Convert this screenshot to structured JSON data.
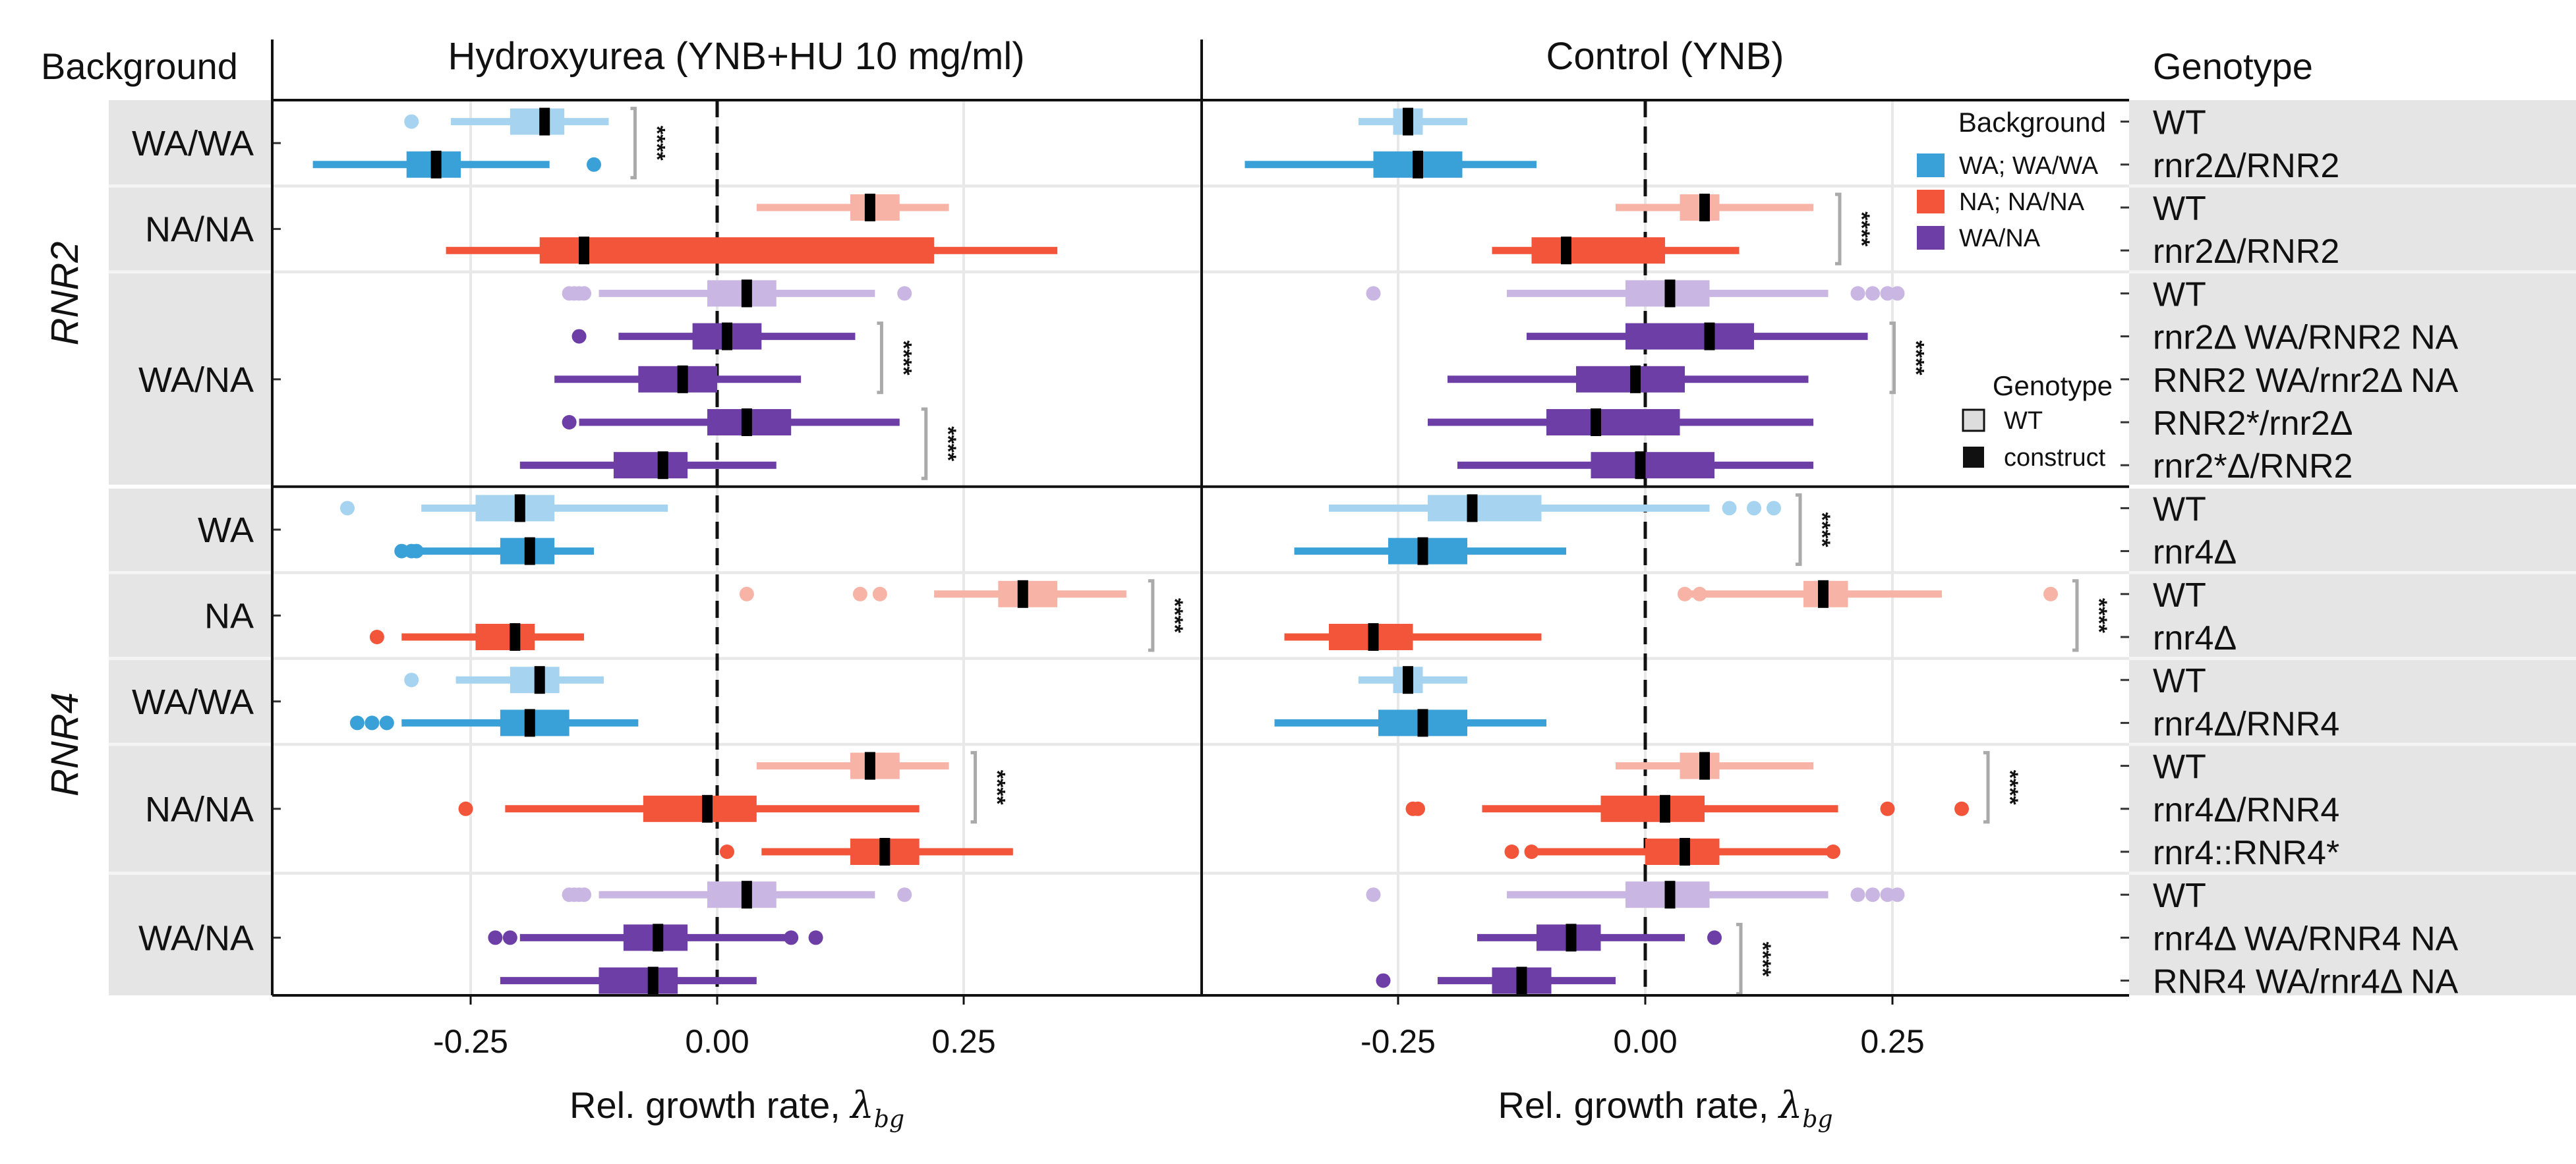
{
  "chart_data": {
    "type": "box",
    "headers": {
      "background": "Background",
      "genotype": "Genotype",
      "panels": [
        "Hydroxyurea (YNB+HU 10 mg/ml)",
        "Control (YNB)"
      ]
    },
    "x_axis": {
      "label": "Rel. growth rate, ",
      "label_symbol": "λ",
      "label_sub": "bg",
      "ticks": [
        -0.25,
        0.0,
        0.25
      ],
      "tick_labels": [
        "-0.25",
        "0.00",
        "0.25"
      ],
      "xlim": [
        -0.45,
        0.45
      ],
      "reference_line": 0
    },
    "gene_groups": [
      {
        "label": "RNR2",
        "row_start": 1,
        "row_end": 9
      },
      {
        "label": "RNR4",
        "row_start": 10,
        "row_end": 21
      }
    ],
    "background_groups": [
      {
        "label": "WA/WA",
        "row_start": 1,
        "row_end": 2
      },
      {
        "label": "NA/NA",
        "row_start": 3,
        "row_end": 4
      },
      {
        "label": "WA/NA",
        "row_start": 5,
        "row_end": 9
      },
      {
        "label": "WA",
        "row_start": 10,
        "row_end": 11
      },
      {
        "label": "NA",
        "row_start": 12,
        "row_end": 13
      },
      {
        "label": "WA/WA",
        "row_start": 14,
        "row_end": 15
      },
      {
        "label": "NA/NA",
        "row_start": 16,
        "row_end": 18
      },
      {
        "label": "WA/NA",
        "row_start": 19,
        "row_end": 21
      }
    ],
    "legend": {
      "background_title": "Background",
      "background_items": [
        {
          "label": "WA; WA/WA",
          "color": "#3aa0d8"
        },
        {
          "label": "NA; NA/NA",
          "color": "#f2553a"
        },
        {
          "label": "WA/NA",
          "color": "#6d3ea5"
        }
      ],
      "genotype_title": "Genotype",
      "genotype_items": [
        {
          "label": "WT",
          "style": "light"
        },
        {
          "label": "construct",
          "style": "dark"
        }
      ]
    },
    "colors": {
      "WA": {
        "dark": "#3aa0d8",
        "light": "#a6d4f0"
      },
      "NA": {
        "dark": "#f2553a",
        "light": "#f7b3a5"
      },
      "WN": {
        "dark": "#6d3ea5",
        "light": "#c9b6e2"
      },
      "panel_strip": "#e5e5e5",
      "row_line": "#e8e8e8",
      "significance_bracket": "#aaaaaa"
    },
    "significance_label": "****",
    "rows": [
      {
        "genotype": "WT",
        "color": "WA",
        "type": "wt",
        "hu": {
          "wl": -0.27,
          "q1": -0.21,
          "med": -0.175,
          "q3": -0.155,
          "wh": -0.11,
          "out": [
            -0.31
          ]
        },
        "ctrl": {
          "wl": -0.29,
          "q1": -0.255,
          "med": -0.24,
          "q3": -0.225,
          "wh": -0.18,
          "out": []
        }
      },
      {
        "genotype": "rnr2Δ/RNR2",
        "color": "WA",
        "type": "c",
        "hu": {
          "wl": -0.41,
          "q1": -0.315,
          "med": -0.285,
          "q3": -0.26,
          "wh": -0.17,
          "out": [
            -0.125
          ]
        },
        "ctrl": {
          "wl": -0.405,
          "q1": -0.275,
          "med": -0.23,
          "q3": -0.185,
          "wh": -0.11,
          "out": []
        }
      },
      {
        "genotype": "WT",
        "color": "NA",
        "type": "wt",
        "hu": {
          "wl": 0.04,
          "q1": 0.135,
          "med": 0.155,
          "q3": 0.185,
          "wh": 0.235,
          "out": []
        },
        "ctrl": {
          "wl": -0.03,
          "q1": 0.035,
          "med": 0.06,
          "q3": 0.075,
          "wh": 0.17,
          "out": []
        }
      },
      {
        "genotype": "rnr2Δ/RNR2",
        "color": "NA",
        "type": "c",
        "hu": {
          "wl": -0.275,
          "q1": -0.18,
          "med": -0.135,
          "q3": 0.22,
          "wh": 0.345,
          "out": []
        },
        "ctrl": {
          "wl": -0.155,
          "q1": -0.115,
          "med": -0.08,
          "q3": 0.02,
          "wh": 0.095,
          "out": []
        }
      },
      {
        "genotype": "WT",
        "color": "WN",
        "type": "wt",
        "hu": {
          "wl": -0.12,
          "q1": -0.01,
          "med": 0.03,
          "q3": 0.06,
          "wh": 0.16,
          "out": [
            -0.15,
            -0.145,
            -0.14,
            -0.135,
            0.19
          ]
        },
        "ctrl": {
          "wl": -0.14,
          "q1": -0.02,
          "med": 0.025,
          "q3": 0.065,
          "wh": 0.185,
          "out": [
            -0.275,
            0.215,
            0.23,
            0.245,
            0.255
          ]
        }
      },
      {
        "genotype": "rnr2Δ WA/RNR2 NA",
        "color": "WN",
        "type": "c",
        "hu": {
          "wl": -0.1,
          "q1": -0.025,
          "med": 0.01,
          "q3": 0.045,
          "wh": 0.14,
          "out": [
            -0.14
          ]
        },
        "ctrl": {
          "wl": -0.12,
          "q1": -0.02,
          "med": 0.065,
          "q3": 0.11,
          "wh": 0.225,
          "out": []
        }
      },
      {
        "genotype": "RNR2 WA/rnr2Δ NA",
        "color": "WN",
        "type": "c",
        "hu": {
          "wl": -0.165,
          "q1": -0.08,
          "med": -0.035,
          "q3": 0.0,
          "wh": 0.085,
          "out": []
        },
        "ctrl": {
          "wl": -0.2,
          "q1": -0.07,
          "med": -0.01,
          "q3": 0.04,
          "wh": 0.165,
          "out": []
        }
      },
      {
        "genotype": "RNR2*/rnr2Δ",
        "color": "WN",
        "type": "c",
        "hu": {
          "wl": -0.14,
          "q1": -0.01,
          "med": 0.03,
          "q3": 0.075,
          "wh": 0.185,
          "out": [
            -0.15
          ]
        },
        "ctrl": {
          "wl": -0.22,
          "q1": -0.1,
          "med": -0.05,
          "q3": 0.035,
          "wh": 0.17,
          "out": []
        }
      },
      {
        "genotype": "rnr2*Δ/RNR2",
        "color": "WN",
        "type": "c",
        "hu": {
          "wl": -0.2,
          "q1": -0.105,
          "med": -0.055,
          "q3": -0.03,
          "wh": 0.06,
          "out": []
        },
        "ctrl": {
          "wl": -0.19,
          "q1": -0.055,
          "med": -0.005,
          "q3": 0.07,
          "wh": 0.17,
          "out": []
        }
      },
      {
        "genotype": "WT",
        "color": "WA",
        "type": "wt",
        "hu": {
          "wl": -0.3,
          "q1": -0.245,
          "med": -0.2,
          "q3": -0.165,
          "wh": -0.05,
          "out": [
            -0.375
          ]
        },
        "ctrl": {
          "wl": -0.32,
          "q1": -0.22,
          "med": -0.175,
          "q3": -0.105,
          "wh": 0.065,
          "out": [
            0.085,
            0.11,
            0.13
          ]
        }
      },
      {
        "genotype": "rnr4Δ",
        "color": "WA",
        "type": "c",
        "hu": {
          "wl": -0.3,
          "q1": -0.22,
          "med": -0.19,
          "q3": -0.165,
          "wh": -0.125,
          "out": [
            -0.32,
            -0.31,
            -0.305
          ]
        },
        "ctrl": {
          "wl": -0.355,
          "q1": -0.26,
          "med": -0.225,
          "q3": -0.18,
          "wh": -0.08,
          "out": []
        }
      },
      {
        "genotype": "WT",
        "color": "NA",
        "type": "wt",
        "hu": {
          "wl": 0.22,
          "q1": 0.285,
          "med": 0.31,
          "q3": 0.345,
          "wh": 0.415,
          "out": [
            0.03,
            0.145,
            0.165
          ]
        },
        "ctrl": {
          "wl": 0.04,
          "q1": 0.16,
          "med": 0.18,
          "q3": 0.205,
          "wh": 0.3,
          "out": [
            0.04,
            0.055,
            0.41
          ]
        }
      },
      {
        "genotype": "rnr4Δ",
        "color": "NA",
        "type": "c",
        "hu": {
          "wl": -0.32,
          "q1": -0.245,
          "med": -0.205,
          "q3": -0.185,
          "wh": -0.135,
          "out": [
            -0.345
          ]
        },
        "ctrl": {
          "wl": -0.365,
          "q1": -0.32,
          "med": -0.275,
          "q3": -0.235,
          "wh": -0.105,
          "out": []
        }
      },
      {
        "genotype": "WT",
        "color": "WA",
        "type": "wt",
        "hu": {
          "wl": -0.265,
          "q1": -0.21,
          "med": -0.18,
          "q3": -0.16,
          "wh": -0.115,
          "out": [
            -0.31
          ]
        },
        "ctrl": {
          "wl": -0.29,
          "q1": -0.255,
          "med": -0.24,
          "q3": -0.225,
          "wh": -0.18,
          "out": []
        }
      },
      {
        "genotype": "rnr4Δ/RNR4",
        "color": "WA",
        "type": "c",
        "hu": {
          "wl": -0.32,
          "q1": -0.22,
          "med": -0.19,
          "q3": -0.15,
          "wh": -0.08,
          "out": [
            -0.365,
            -0.35,
            -0.335
          ]
        },
        "ctrl": {
          "wl": -0.375,
          "q1": -0.27,
          "med": -0.225,
          "q3": -0.18,
          "wh": -0.1,
          "out": []
        }
      },
      {
        "genotype": "WT",
        "color": "NA",
        "type": "wt",
        "hu": {
          "wl": 0.04,
          "q1": 0.135,
          "med": 0.155,
          "q3": 0.185,
          "wh": 0.235,
          "out": []
        },
        "ctrl": {
          "wl": -0.03,
          "q1": 0.035,
          "med": 0.06,
          "q3": 0.075,
          "wh": 0.17,
          "out": []
        }
      },
      {
        "genotype": "rnr4Δ/RNR4",
        "color": "NA",
        "type": "c",
        "hu": {
          "wl": -0.215,
          "q1": -0.075,
          "med": -0.01,
          "q3": 0.04,
          "wh": 0.205,
          "out": [
            -0.255
          ]
        },
        "ctrl": {
          "wl": -0.165,
          "q1": -0.045,
          "med": 0.02,
          "q3": 0.06,
          "wh": 0.195,
          "out": [
            -0.235,
            -0.23,
            0.245,
            0.32
          ]
        }
      },
      {
        "genotype": "rnr4::RNR4*",
        "color": "NA",
        "type": "c",
        "hu": {
          "wl": 0.045,
          "q1": 0.135,
          "med": 0.17,
          "q3": 0.205,
          "wh": 0.3,
          "out": [
            0.01
          ]
        },
        "ctrl": {
          "wl": -0.11,
          "q1": 0.0,
          "med": 0.04,
          "q3": 0.075,
          "wh": 0.19,
          "out": [
            -0.135,
            -0.115,
            0.19
          ]
        }
      },
      {
        "genotype": "WT",
        "color": "WN",
        "type": "wt",
        "hu": {
          "wl": -0.12,
          "q1": -0.01,
          "med": 0.03,
          "q3": 0.06,
          "wh": 0.16,
          "out": [
            -0.15,
            -0.145,
            -0.14,
            -0.135,
            0.19
          ]
        },
        "ctrl": {
          "wl": -0.14,
          "q1": -0.02,
          "med": 0.025,
          "q3": 0.065,
          "wh": 0.185,
          "out": [
            -0.275,
            0.215,
            0.23,
            0.245,
            0.255
          ]
        }
      },
      {
        "genotype": "rnr4Δ WA/RNR4 NA",
        "color": "WN",
        "type": "c",
        "hu": {
          "wl": -0.2,
          "q1": -0.095,
          "med": -0.06,
          "q3": -0.03,
          "wh": 0.07,
          "out": [
            -0.225,
            -0.21,
            0.075,
            0.1
          ]
        },
        "ctrl": {
          "wl": -0.17,
          "q1": -0.11,
          "med": -0.075,
          "q3": -0.045,
          "wh": 0.04,
          "out": [
            0.07
          ]
        }
      },
      {
        "genotype": "RNR4 WA/rnr4Δ NA",
        "color": "WN",
        "type": "c",
        "hu": {
          "wl": -0.22,
          "q1": -0.12,
          "med": -0.065,
          "q3": -0.04,
          "wh": 0.04,
          "out": []
        },
        "ctrl": {
          "wl": -0.21,
          "q1": -0.155,
          "med": -0.125,
          "q3": -0.095,
          "wh": -0.03,
          "out": [
            -0.265
          ]
        }
      }
    ],
    "significance": {
      "hu": [
        [
          1,
          2
        ],
        [
          6,
          7
        ],
        [
          8,
          9
        ],
        [
          12,
          13
        ],
        [
          16,
          17
        ]
      ],
      "ctrl": [
        [
          3,
          4
        ],
        [
          6,
          7
        ],
        [
          10,
          11
        ],
        [
          12,
          13
        ],
        [
          16,
          17
        ],
        [
          20,
          21
        ]
      ]
    }
  }
}
